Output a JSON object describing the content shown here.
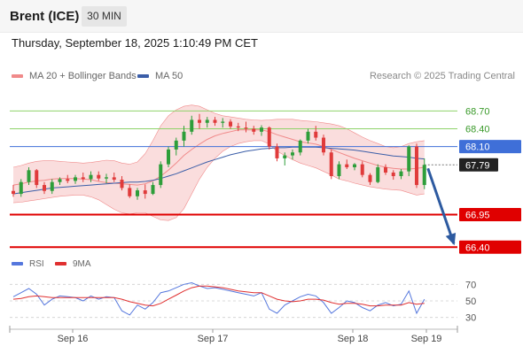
{
  "header": {
    "symbol": "Brent (ICE)",
    "timeframe": "30 MIN",
    "datetime": "Thursday, September 18, 2025 1:10:49 PM CET",
    "copyright": "Research © 2025 Trading Central"
  },
  "colors": {
    "bull": "#2e9e3a",
    "bear": "#e03b3b",
    "band_fill": "#f9d7d7",
    "ma20": "#f08a8a",
    "ma50": "#3b5ea8",
    "resistance": "#8fd36a",
    "current": "#3f6fd8",
    "support": "#e00000",
    "pivot_line": "#3f6fd8",
    "arrow": "#2d5aa0",
    "last": "#222222",
    "rsi": "#5577dd",
    "rsi_ma": "#e03030"
  },
  "chart_data": {
    "type": "candlestick",
    "ylim": [
      66.3,
      69.05
    ],
    "legend": [
      {
        "label": "MA 20 + Bollinger Bands",
        "color": "#f08a8a"
      },
      {
        "label": "MA 50",
        "color": "#3b5ea8"
      }
    ],
    "x_ticks": [
      "Sep 16",
      "Sep 17",
      "Sep 18",
      "Sep 19"
    ],
    "candles": [
      [
        67.35,
        67.45,
        67.25,
        67.3
      ],
      [
        67.3,
        67.55,
        67.25,
        67.5
      ],
      [
        67.5,
        67.75,
        67.45,
        67.7
      ],
      [
        67.7,
        67.72,
        67.4,
        67.45
      ],
      [
        67.45,
        67.5,
        67.3,
        67.35
      ],
      [
        67.35,
        67.55,
        67.3,
        67.5
      ],
      [
        67.5,
        67.58,
        67.45,
        67.55
      ],
      [
        67.55,
        67.62,
        67.48,
        67.52
      ],
      [
        67.52,
        67.62,
        67.47,
        67.58
      ],
      [
        67.58,
        67.66,
        67.5,
        67.55
      ],
      [
        67.55,
        67.68,
        67.5,
        67.62
      ],
      [
        67.62,
        67.68,
        67.52,
        67.56
      ],
      [
        67.56,
        67.64,
        67.48,
        67.58
      ],
      [
        67.58,
        67.66,
        67.5,
        67.54
      ],
      [
        67.54,
        67.6,
        67.36,
        67.4
      ],
      [
        67.4,
        67.46,
        67.23,
        67.26
      ],
      [
        67.26,
        67.4,
        67.2,
        67.36
      ],
      [
        67.36,
        67.46,
        67.22,
        67.3
      ],
      [
        67.3,
        67.5,
        67.28,
        67.45
      ],
      [
        67.45,
        67.85,
        67.4,
        67.8
      ],
      [
        67.8,
        68.1,
        67.75,
        68.05
      ],
      [
        68.05,
        68.25,
        67.95,
        68.2
      ],
      [
        68.2,
        68.45,
        68.1,
        68.35
      ],
      [
        68.35,
        68.62,
        68.3,
        68.55
      ],
      [
        68.55,
        68.65,
        68.4,
        68.5
      ],
      [
        68.5,
        68.6,
        68.42,
        68.55
      ],
      [
        68.55,
        68.6,
        68.45,
        68.5
      ],
      [
        68.5,
        68.58,
        68.42,
        68.52
      ],
      [
        68.52,
        68.56,
        68.4,
        68.44
      ],
      [
        68.44,
        68.5,
        68.36,
        68.42
      ],
      [
        68.42,
        68.52,
        68.34,
        68.4
      ],
      [
        68.4,
        68.45,
        68.3,
        68.35
      ],
      [
        68.35,
        68.46,
        68.28,
        68.42
      ],
      [
        68.42,
        68.44,
        68.05,
        68.1
      ],
      [
        68.1,
        68.15,
        67.85,
        67.9
      ],
      [
        67.9,
        68.0,
        67.78,
        67.95
      ],
      [
        67.95,
        68.05,
        67.88,
        68.0
      ],
      [
        68.0,
        68.22,
        67.95,
        68.2
      ],
      [
        68.2,
        68.4,
        68.15,
        68.35
      ],
      [
        68.35,
        68.45,
        68.2,
        68.25
      ],
      [
        68.25,
        68.3,
        67.95,
        68.0
      ],
      [
        68.0,
        68.05,
        67.55,
        67.6
      ],
      [
        67.6,
        67.85,
        67.55,
        67.8
      ],
      [
        67.8,
        67.88,
        67.72,
        67.75
      ],
      [
        67.75,
        67.82,
        67.7,
        67.8
      ],
      [
        67.8,
        67.85,
        67.58,
        67.62
      ],
      [
        67.62,
        67.65,
        67.45,
        67.5
      ],
      [
        67.5,
        67.8,
        67.48,
        67.75
      ],
      [
        67.75,
        67.8,
        67.62,
        67.66
      ],
      [
        67.66,
        67.7,
        67.54,
        67.6
      ],
      [
        67.6,
        67.72,
        67.55,
        67.68
      ],
      [
        67.68,
        68.12,
        67.6,
        68.1
      ],
      [
        68.1,
        68.15,
        67.4,
        67.45
      ],
      [
        67.45,
        67.9,
        67.38,
        67.79
      ]
    ],
    "ma20": [
      67.45,
      67.47,
      67.5,
      67.52,
      67.53,
      67.55,
      67.56,
      67.56,
      67.56,
      67.55,
      67.54,
      67.51,
      67.49,
      67.48,
      67.47,
      67.46,
      67.45,
      67.47,
      67.52,
      67.6,
      67.7,
      67.82,
      67.95,
      68.05,
      68.14,
      68.22,
      68.28,
      68.32,
      68.35,
      68.38,
      68.38,
      68.38,
      68.38,
      68.35,
      68.3,
      68.26,
      68.22,
      68.18,
      68.16,
      68.14,
      68.1,
      68.05,
      68.0,
      67.95,
      67.9,
      67.86,
      67.82,
      67.78,
      67.75,
      67.73,
      67.72,
      67.72,
      67.73,
      67.75
    ],
    "bb_upper": [
      67.75,
      67.78,
      67.82,
      67.85,
      67.86,
      67.86,
      67.85,
      67.84,
      67.83,
      67.82,
      67.83,
      67.85,
      67.87,
      67.86,
      67.82,
      67.8,
      67.84,
      67.98,
      68.2,
      68.45,
      68.62,
      68.72,
      68.78,
      68.8,
      68.78,
      68.72,
      68.66,
      68.62,
      68.6,
      68.58,
      68.56,
      68.55,
      68.54,
      68.55,
      68.56,
      68.56,
      68.56,
      68.54,
      68.53,
      68.52,
      68.5,
      68.48,
      68.45,
      68.4,
      68.33,
      68.26,
      68.2,
      68.15,
      68.1,
      68.08,
      68.1,
      68.15,
      68.18,
      68.2
    ],
    "bb_lower": [
      67.15,
      67.16,
      67.18,
      67.2,
      67.22,
      67.24,
      67.26,
      67.27,
      67.28,
      67.28,
      67.25,
      67.2,
      67.12,
      67.04,
      66.98,
      66.96,
      66.98,
      66.98,
      66.92,
      66.86,
      66.85,
      66.9,
      67.05,
      67.3,
      67.55,
      67.75,
      67.9,
      68.02,
      68.1,
      68.15,
      68.18,
      68.2,
      68.2,
      68.14,
      68.02,
      67.95,
      67.88,
      67.82,
      67.78,
      67.74,
      67.68,
      67.62,
      67.55,
      67.52,
      67.48,
      67.45,
      67.42,
      67.4,
      67.38,
      67.37,
      67.36,
      67.32,
      67.28,
      67.3
    ],
    "ma50": [
      67.3,
      67.32,
      67.34,
      67.36,
      67.38,
      67.4,
      67.41,
      67.42,
      67.43,
      67.44,
      67.45,
      67.46,
      67.47,
      67.48,
      67.49,
      67.5,
      67.5,
      67.51,
      67.53,
      67.56,
      67.6,
      67.64,
      67.69,
      67.74,
      67.79,
      67.84,
      67.88,
      67.92,
      67.96,
      67.99,
      68.02,
      68.04,
      68.06,
      68.07,
      68.08,
      68.08,
      68.09,
      68.09,
      68.09,
      68.09,
      68.08,
      68.07,
      68.06,
      68.05,
      68.04,
      68.02,
      68.0,
      67.98,
      67.96,
      67.94,
      67.93,
      67.92,
      67.9,
      67.89
    ],
    "levels": [
      {
        "label": "68.70",
        "value": 68.7,
        "kind": "resistance"
      },
      {
        "label": "68.40",
        "value": 68.4,
        "kind": "resistance"
      },
      {
        "label": "68.10",
        "value": 68.1,
        "kind": "pivot"
      },
      {
        "label": "67.79",
        "value": 67.79,
        "kind": "last"
      },
      {
        "label": "66.95",
        "value": 66.95,
        "kind": "support"
      },
      {
        "label": "66.40",
        "value": 66.4,
        "kind": "support"
      }
    ],
    "forecast_arrow": {
      "from_index": 53,
      "from_value": 67.79,
      "to_value": 66.4
    },
    "rsi": {
      "legend": [
        {
          "label": "RSI",
          "color": "#5577dd"
        },
        {
          "label": "9MA",
          "color": "#e03030"
        }
      ],
      "ylim": [
        20,
        80
      ],
      "ticks": [
        "70",
        "50",
        "30"
      ],
      "rsi": [
        55,
        60,
        65,
        58,
        45,
        52,
        56,
        55,
        54,
        50,
        56,
        52,
        55,
        54,
        38,
        33,
        45,
        40,
        48,
        60,
        62,
        66,
        70,
        72,
        68,
        65,
        66,
        64,
        62,
        60,
        58,
        56,
        60,
        40,
        35,
        45,
        50,
        55,
        58,
        56,
        48,
        35,
        42,
        50,
        48,
        42,
        38,
        45,
        48,
        44,
        46,
        62,
        35,
        52
      ],
      "ma": [
        52,
        53,
        55,
        56,
        55,
        54,
        54,
        54,
        54,
        54,
        54,
        54,
        54,
        54,
        52,
        49,
        47,
        45,
        44,
        47,
        52,
        57,
        62,
        66,
        68,
        68,
        67,
        66,
        64,
        62,
        61,
        60,
        60,
        56,
        52,
        50,
        49,
        50,
        52,
        52,
        51,
        48,
        46,
        47,
        47,
        46,
        44,
        44,
        45,
        45,
        45,
        48,
        46,
        47
      ]
    }
  }
}
